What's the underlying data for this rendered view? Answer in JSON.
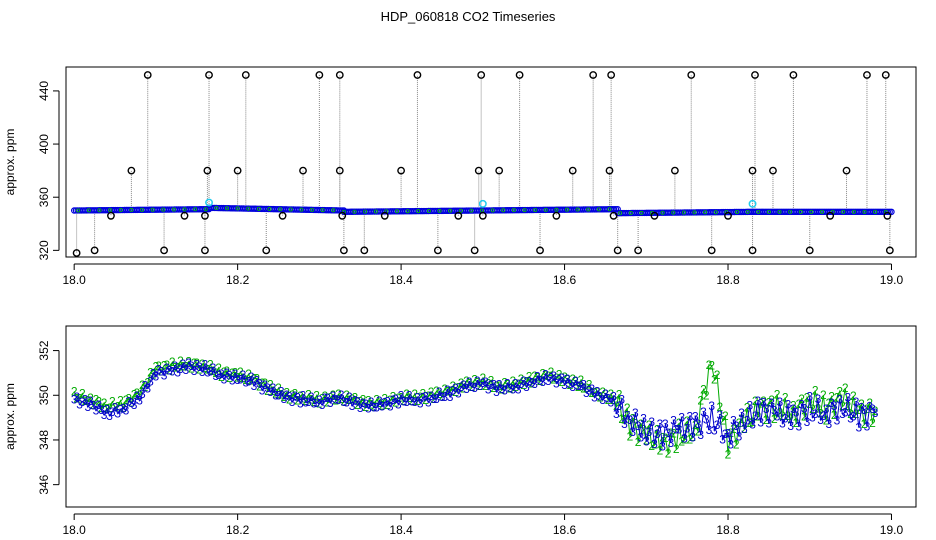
{
  "figure": {
    "title": "HDP_060818  CO2 Timeseries"
  },
  "chart_data": [
    {
      "type": "scatter",
      "ylabel": "approx. ppm",
      "xlim": [
        17.99,
        19.03
      ],
      "ylim": [
        315,
        458
      ],
      "x_ticks": [
        18.0,
        18.2,
        18.4,
        18.6,
        18.8,
        19.0
      ],
      "x_tick_labels": [
        "18.0",
        "18.2",
        "18.4",
        "18.6",
        "18.8",
        "19.0"
      ],
      "y_ticks": [
        320,
        360,
        400,
        440
      ],
      "y_tick_labels": [
        "320",
        "360",
        "400",
        "440"
      ],
      "grid": false,
      "colors": {
        "main": "#0000dd",
        "green": "#00bb00",
        "cyan": "#22ccee",
        "outlier": "#000000",
        "vline": "#888888"
      },
      "baseline_segments": [
        {
          "x0": 18.0,
          "x1": 18.165,
          "y0": 350,
          "y1": 351
        },
        {
          "x0": 18.165,
          "x1": 18.33,
          "y0": 352,
          "y1": 350
        },
        {
          "x0": 18.33,
          "x1": 18.665,
          "y0": 349,
          "y1": 351
        },
        {
          "x0": 18.665,
          "x1": 18.83,
          "y0": 348,
          "y1": 349
        },
        {
          "x0": 18.83,
          "x1": 19.0,
          "y0": 349,
          "y1": 349
        }
      ],
      "outlier_points": [
        {
          "x": 18.003,
          "y": 318
        },
        {
          "x": 18.025,
          "y": 320
        },
        {
          "x": 18.045,
          "y": 346
        },
        {
          "x": 18.07,
          "y": 380
        },
        {
          "x": 18.09,
          "y": 452
        },
        {
          "x": 18.11,
          "y": 320
        },
        {
          "x": 18.135,
          "y": 346
        },
        {
          "x": 18.16,
          "y": 320
        },
        {
          "x": 18.16,
          "y": 346
        },
        {
          "x": 18.163,
          "y": 380
        },
        {
          "x": 18.165,
          "y": 452
        },
        {
          "x": 18.2,
          "y": 380
        },
        {
          "x": 18.21,
          "y": 452
        },
        {
          "x": 18.235,
          "y": 320
        },
        {
          "x": 18.255,
          "y": 346
        },
        {
          "x": 18.28,
          "y": 380
        },
        {
          "x": 18.3,
          "y": 452
        },
        {
          "x": 18.325,
          "y": 452
        },
        {
          "x": 18.325,
          "y": 380
        },
        {
          "x": 18.328,
          "y": 346
        },
        {
          "x": 18.33,
          "y": 320
        },
        {
          "x": 18.355,
          "y": 320
        },
        {
          "x": 18.38,
          "y": 346
        },
        {
          "x": 18.4,
          "y": 380
        },
        {
          "x": 18.42,
          "y": 452
        },
        {
          "x": 18.445,
          "y": 320
        },
        {
          "x": 18.47,
          "y": 346
        },
        {
          "x": 18.49,
          "y": 320
        },
        {
          "x": 18.495,
          "y": 380
        },
        {
          "x": 18.498,
          "y": 452
        },
        {
          "x": 18.5,
          "y": 346
        },
        {
          "x": 18.52,
          "y": 380
        },
        {
          "x": 18.545,
          "y": 452
        },
        {
          "x": 18.57,
          "y": 320
        },
        {
          "x": 18.59,
          "y": 346
        },
        {
          "x": 18.61,
          "y": 380
        },
        {
          "x": 18.635,
          "y": 452
        },
        {
          "x": 18.655,
          "y": 380
        },
        {
          "x": 18.657,
          "y": 452
        },
        {
          "x": 18.66,
          "y": 346
        },
        {
          "x": 18.665,
          "y": 320
        },
        {
          "x": 18.69,
          "y": 320
        },
        {
          "x": 18.71,
          "y": 346
        },
        {
          "x": 18.735,
          "y": 380
        },
        {
          "x": 18.755,
          "y": 452
        },
        {
          "x": 18.78,
          "y": 320
        },
        {
          "x": 18.8,
          "y": 346
        },
        {
          "x": 18.83,
          "y": 320
        },
        {
          "x": 18.83,
          "y": 380
        },
        {
          "x": 18.833,
          "y": 452
        },
        {
          "x": 18.855,
          "y": 380
        },
        {
          "x": 18.88,
          "y": 452
        },
        {
          "x": 18.9,
          "y": 320
        },
        {
          "x": 18.925,
          "y": 346
        },
        {
          "x": 18.945,
          "y": 380
        },
        {
          "x": 18.97,
          "y": 452
        },
        {
          "x": 18.993,
          "y": 452
        },
        {
          "x": 18.995,
          "y": 346
        },
        {
          "x": 18.998,
          "y": 320
        }
      ],
      "cyan_points": [
        {
          "x": 18.165,
          "y": 356
        },
        {
          "x": 18.5,
          "y": 355
        },
        {
          "x": 18.83,
          "y": 355
        }
      ]
    },
    {
      "type": "line",
      "ylabel": "approx. ppm",
      "xlim": [
        17.99,
        19.03
      ],
      "ylim": [
        345.0,
        353.1
      ],
      "x_ticks": [
        18.0,
        18.2,
        18.4,
        18.6,
        18.8,
        19.0
      ],
      "x_tick_labels": [
        "18.0",
        "18.2",
        "18.4",
        "18.6",
        "18.8",
        "19.0"
      ],
      "y_ticks": [
        346,
        348,
        350,
        352
      ],
      "y_tick_labels": [
        "346",
        "348",
        "350",
        "352"
      ],
      "grid": false,
      "series": [
        {
          "marker": "3",
          "color": "#0000cc",
          "x": [
            18.0,
            18.02,
            18.04,
            18.06,
            18.08,
            18.1,
            18.12,
            18.14,
            18.16,
            18.18,
            18.2,
            18.22,
            18.24,
            18.26,
            18.28,
            18.3,
            18.32,
            18.34,
            18.36,
            18.38,
            18.4,
            18.42,
            18.44,
            18.46,
            18.48,
            18.5,
            18.52,
            18.54,
            18.56,
            18.58,
            18.6,
            18.62,
            18.64,
            18.66,
            18.68,
            18.7,
            18.72,
            18.74,
            18.76,
            18.78,
            18.8,
            18.82,
            18.84,
            18.86,
            18.88,
            18.9,
            18.92,
            18.94,
            18.96,
            18.98
          ],
          "y": [
            349.8,
            349.6,
            349.2,
            349.4,
            349.9,
            351.0,
            351.1,
            351.3,
            351.2,
            350.9,
            350.8,
            350.6,
            350.2,
            349.9,
            349.8,
            349.7,
            349.9,
            349.7,
            349.5,
            349.6,
            349.8,
            349.8,
            349.9,
            350.1,
            350.4,
            350.5,
            350.3,
            350.4,
            350.6,
            350.8,
            350.6,
            350.4,
            350.0,
            349.8,
            348.9,
            348.4,
            348.2,
            348.5,
            348.6,
            349.0,
            348.2,
            348.9,
            349.3,
            349.2,
            349.0,
            349.4,
            349.2,
            349.5,
            349.1,
            349.2
          ]
        },
        {
          "marker": "2",
          "color": "#00aa00",
          "x": [
            18.0,
            18.02,
            18.04,
            18.06,
            18.08,
            18.1,
            18.12,
            18.14,
            18.16,
            18.18,
            18.2,
            18.22,
            18.24,
            18.26,
            18.28,
            18.3,
            18.32,
            18.34,
            18.36,
            18.38,
            18.4,
            18.42,
            18.44,
            18.46,
            18.48,
            18.5,
            18.52,
            18.54,
            18.56,
            18.58,
            18.6,
            18.62,
            18.64,
            18.66,
            18.68,
            18.7,
            18.72,
            18.74,
            18.76,
            18.78,
            18.8,
            18.82,
            18.84,
            18.86,
            18.88,
            18.9,
            18.92,
            18.94,
            18.96,
            18.98
          ],
          "y": [
            350.0,
            349.8,
            349.5,
            349.6,
            350.1,
            351.2,
            351.3,
            351.4,
            351.3,
            351.0,
            350.9,
            350.7,
            350.3,
            350.0,
            349.9,
            349.8,
            349.9,
            349.8,
            349.6,
            349.7,
            349.9,
            349.9,
            350.0,
            350.2,
            350.5,
            350.6,
            350.4,
            350.5,
            350.7,
            350.9,
            350.7,
            350.5,
            350.1,
            349.9,
            348.7,
            348.2,
            347.8,
            348.2,
            348.4,
            351.6,
            347.9,
            348.8,
            349.4,
            349.5,
            349.2,
            349.8,
            349.4,
            349.9,
            349.2,
            349.3
          ]
        }
      ]
    }
  ]
}
